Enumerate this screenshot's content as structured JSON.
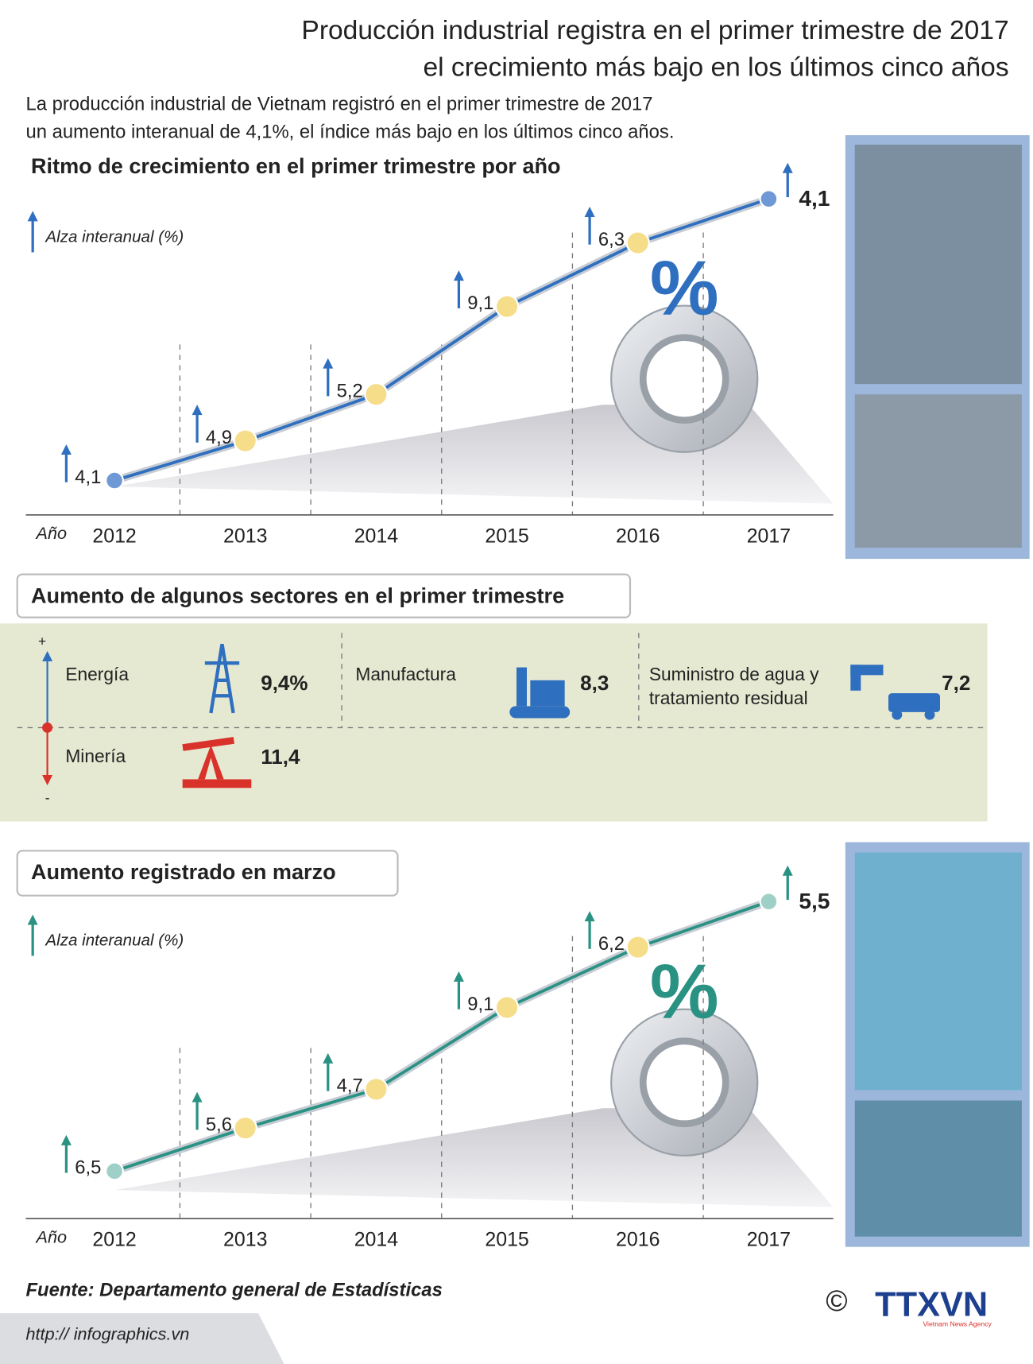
{
  "header": {
    "title_line1": "Producción industrial registra en el primer trimestre de 2017",
    "title_line2": "el crecimiento más bajo en los últimos cinco años",
    "intro_line1": "La producción industrial de Vietnam registró en el primer trimestre de 2017",
    "intro_line2": "un aumento interanual de 4,1%, el índice más bajo en los últimos cinco años."
  },
  "quarter_chart": {
    "title": "Ritmo de crecimiento en el primer trimestre por año",
    "axis_label": "Alza interanual (%)",
    "x_label": "Año",
    "categories": [
      "2012",
      "2013",
      "2014",
      "2015",
      "2016",
      "2017"
    ],
    "points": [
      "4,1",
      "4,9",
      "5,2",
      "9,1",
      "6,3",
      "4,1"
    ]
  },
  "sectors": {
    "title": "Aumento de algunos sectores en el primer trimestre",
    "plus": "+",
    "minus": "-",
    "energy": {
      "name": "Energía",
      "value": "9,4%"
    },
    "manufacturing": {
      "name": "Manufactura",
      "value": "8,3"
    },
    "water": {
      "name_line1": "Suministro de agua y",
      "name_line2": "tratamiento residual",
      "value": "7,2"
    },
    "mining": {
      "name": "Minería",
      "value": "11,4"
    }
  },
  "march_chart": {
    "title": "Aumento registrado en marzo",
    "axis_label": "Alza interanual (%)",
    "x_label": "Año",
    "categories": [
      "2012",
      "2013",
      "2014",
      "2015",
      "2016",
      "2017"
    ],
    "points": [
      "6,5",
      "5,6",
      "4,7",
      "9,1",
      "6,2",
      "5,5"
    ]
  },
  "footer": {
    "source": "Fuente: Departamento general de Estadísticas",
    "url": "http:// infographics.vn",
    "copyright": "©",
    "logo": "TTXVN",
    "agency": "Vietnam News Agency"
  }
}
